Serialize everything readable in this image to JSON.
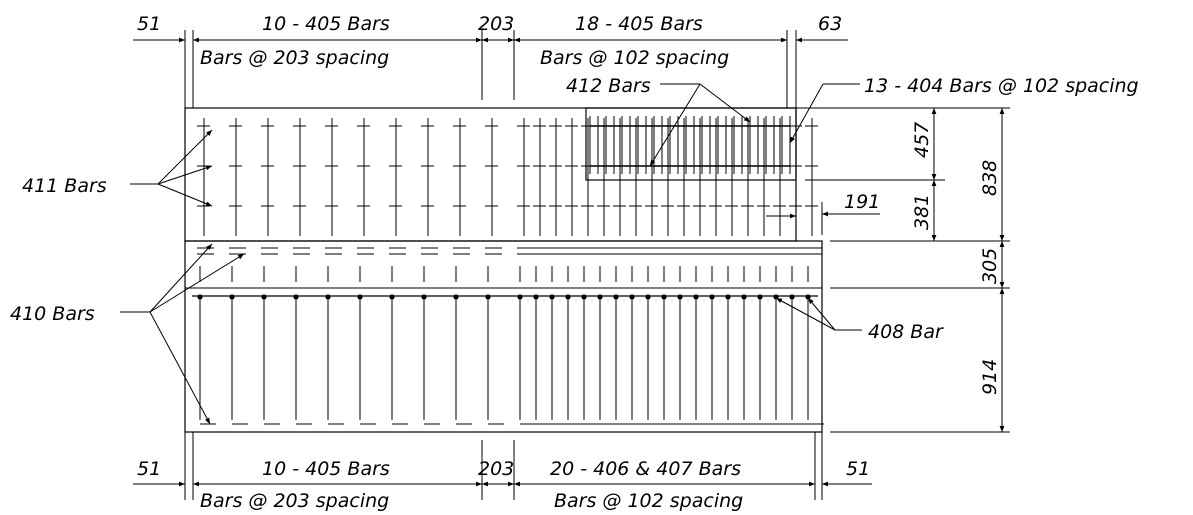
{
  "top_dimensions": {
    "left_edge": "51",
    "left_group_count": "10 - 405 Bars",
    "left_group_spacing": "Bars @ 203 spacing",
    "middle_gap": "203",
    "right_group_count": "18 - 405 Bars",
    "right_group_spacing": "Bars @ 102 spacing",
    "right_edge": "63"
  },
  "bottom_dimensions": {
    "left_edge": "51",
    "left_group_count": "10 - 405 Bars",
    "left_group_spacing": "Bars @ 203 spacing",
    "middle_gap": "203",
    "right_group_count": "20 - 406 & 407 Bars",
    "right_group_spacing": "Bars @ 102 spacing",
    "right_edge": "51"
  },
  "right_dimensions": {
    "d457": "457",
    "d381": "381",
    "d838": "838",
    "d191": "191",
    "d305": "305",
    "d914": "914"
  },
  "callouts": {
    "bars_412": "412 Bars",
    "bars_404": "13 - 404 Bars @ 102 spacing",
    "bars_411": "411 Bars",
    "bars_410": "410 Bars",
    "bar_408": "408 Bar"
  },
  "colors": {
    "line": "#000000",
    "background": "#ffffff"
  }
}
